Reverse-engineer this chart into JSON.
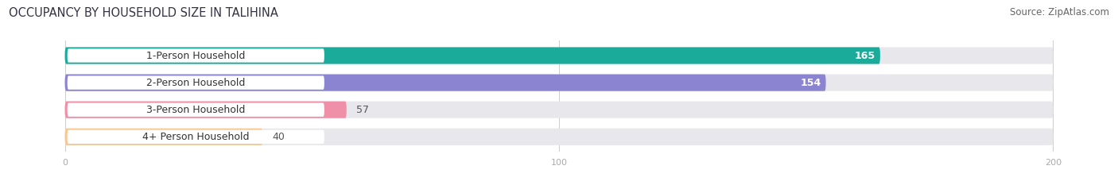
{
  "title": "OCCUPANCY BY HOUSEHOLD SIZE IN TALIHINA",
  "source": "Source: ZipAtlas.com",
  "categories": [
    "1-Person Household",
    "2-Person Household",
    "3-Person Household",
    "4+ Person Household"
  ],
  "values": [
    165,
    154,
    57,
    40
  ],
  "bar_colors": [
    "#1aab9b",
    "#8b84d0",
    "#f090a8",
    "#f5c896"
  ],
  "label_colors": [
    "white",
    "white",
    "#555555",
    "#555555"
  ],
  "xlim": [
    -12,
    212
  ],
  "xticks": [
    0,
    100,
    200
  ],
  "bar_height": 0.62,
  "title_fontsize": 10.5,
  "source_fontsize": 8.5,
  "label_fontsize": 9,
  "value_fontsize": 9,
  "background_color": "#ffffff",
  "bar_bg_color": "#e8e8ec"
}
